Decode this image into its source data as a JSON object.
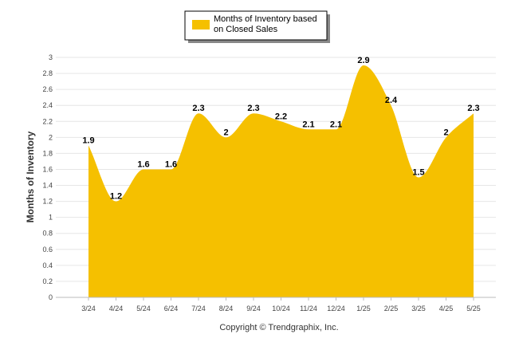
{
  "chart_data": {
    "type": "area",
    "series": [
      {
        "name": "Months of Inventory based on Closed Sales",
        "values": [
          1.9,
          1.2,
          1.6,
          1.6,
          2.3,
          2.0,
          2.3,
          2.2,
          2.1,
          2.1,
          2.9,
          2.4,
          1.5,
          2.0,
          2.3
        ]
      }
    ],
    "categories": [
      "3/24",
      "4/24",
      "5/24",
      "6/24",
      "7/24",
      "8/24",
      "9/24",
      "10/24",
      "11/24",
      "12/24",
      "1/25",
      "2/25",
      "3/25",
      "4/25",
      "5/25"
    ],
    "data_labels": [
      "1.9",
      "1.2",
      "1.6",
      "1.6",
      "2.3",
      "2",
      "2.3",
      "2.2",
      "2.1",
      "2.1",
      "2.9",
      "2.4",
      "1.5",
      "2",
      "2.3"
    ],
    "ylabel": "Months of Inventory",
    "xlabel": "",
    "ylim": [
      0,
      3
    ],
    "yticks": [
      "0",
      "0.2",
      "0.4",
      "0.6",
      "0.8",
      "1",
      "1.2",
      "1.4",
      "1.6",
      "1.8",
      "2",
      "2.2",
      "2.4",
      "2.6",
      "2.8",
      "3"
    ],
    "grid": true,
    "legend_position": "top-center",
    "fill_color": "#F5C000"
  },
  "legend": {
    "line1": "Months of Inventory based",
    "line2": "on Closed Sales"
  },
  "footer": {
    "copyright": "Copyright © Trendgraphix, Inc."
  }
}
